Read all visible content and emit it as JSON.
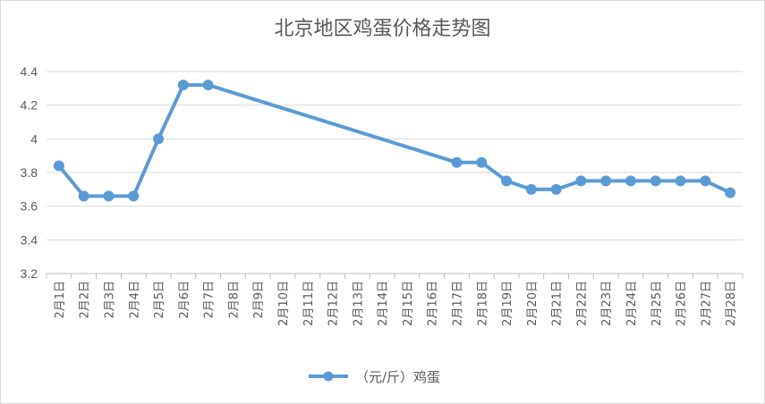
{
  "chart_data": {
    "type": "line",
    "title": "北京地区鸡蛋价格走势图",
    "xlabel": "",
    "ylabel": "",
    "ylim": [
      3.2,
      4.4
    ],
    "yticks": [
      "3.2",
      "3.4",
      "3.6",
      "3.8",
      "4",
      "4.2",
      "4.4"
    ],
    "grid": true,
    "legend_position": "bottom",
    "categories": [
      "2月1日",
      "2月2日",
      "2月3日",
      "2月4日",
      "2月5日",
      "2月6日",
      "2月7日",
      "2月8日",
      "2月9日",
      "2月10日",
      "2月11日",
      "2月12日",
      "2月13日",
      "2月14日",
      "2月15日",
      "2月16日",
      "2月17日",
      "2月18日",
      "2月19日",
      "2月20日",
      "2月21日",
      "2月22日",
      "2月23日",
      "2月24日",
      "2月25日",
      "2月26日",
      "2月27日",
      "2月28日"
    ],
    "series": [
      {
        "name": "（元/斤）鸡蛋",
        "color": "#5b9bd5",
        "values": [
          3.84,
          3.66,
          3.66,
          3.66,
          4.0,
          4.32,
          4.32,
          null,
          null,
          null,
          null,
          null,
          null,
          null,
          null,
          null,
          3.86,
          3.86,
          3.75,
          3.7,
          3.7,
          3.75,
          3.75,
          3.75,
          3.75,
          3.75,
          3.75,
          3.68
        ]
      }
    ]
  }
}
